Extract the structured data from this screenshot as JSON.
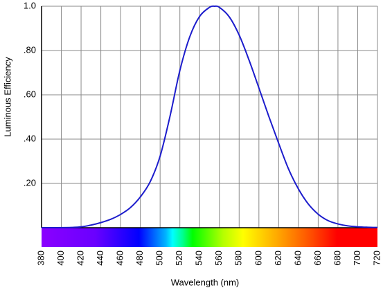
{
  "chart_data": {
    "type": "line",
    "x_label": "Wavelength (nm)",
    "y_label": "Luminous Efficiency",
    "x": [
      380,
      390,
      400,
      410,
      420,
      430,
      440,
      450,
      460,
      470,
      480,
      490,
      500,
      510,
      520,
      530,
      540,
      550,
      555,
      560,
      570,
      580,
      590,
      600,
      610,
      620,
      630,
      640,
      650,
      660,
      670,
      680,
      690,
      700,
      710,
      720
    ],
    "values": [
      0.0,
      0.0001,
      0.0004,
      0.0012,
      0.004,
      0.0116,
      0.023,
      0.038,
      0.06,
      0.091,
      0.139,
      0.208,
      0.323,
      0.503,
      0.71,
      0.862,
      0.954,
      0.995,
      1.0,
      0.995,
      0.952,
      0.87,
      0.757,
      0.631,
      0.503,
      0.381,
      0.265,
      0.175,
      0.107,
      0.061,
      0.032,
      0.017,
      0.0082,
      0.0041,
      0.0021,
      0.00105
    ],
    "color": "#1c1ccc",
    "xlim": [
      380,
      720
    ],
    "xticks": [
      380,
      400,
      420,
      440,
      460,
      480,
      500,
      520,
      540,
      560,
      580,
      600,
      620,
      640,
      660,
      680,
      700,
      720
    ],
    "ylim": [
      0,
      1
    ],
    "yticks": [
      {
        "value": 0.2,
        "label": ".20"
      },
      {
        "value": 0.4,
        "label": ".40"
      },
      {
        "value": 0.6,
        "label": ".60"
      },
      {
        "value": 0.8,
        "label": ".80"
      },
      {
        "value": 1,
        "label": "1.0"
      }
    ],
    "grid": true
  }
}
